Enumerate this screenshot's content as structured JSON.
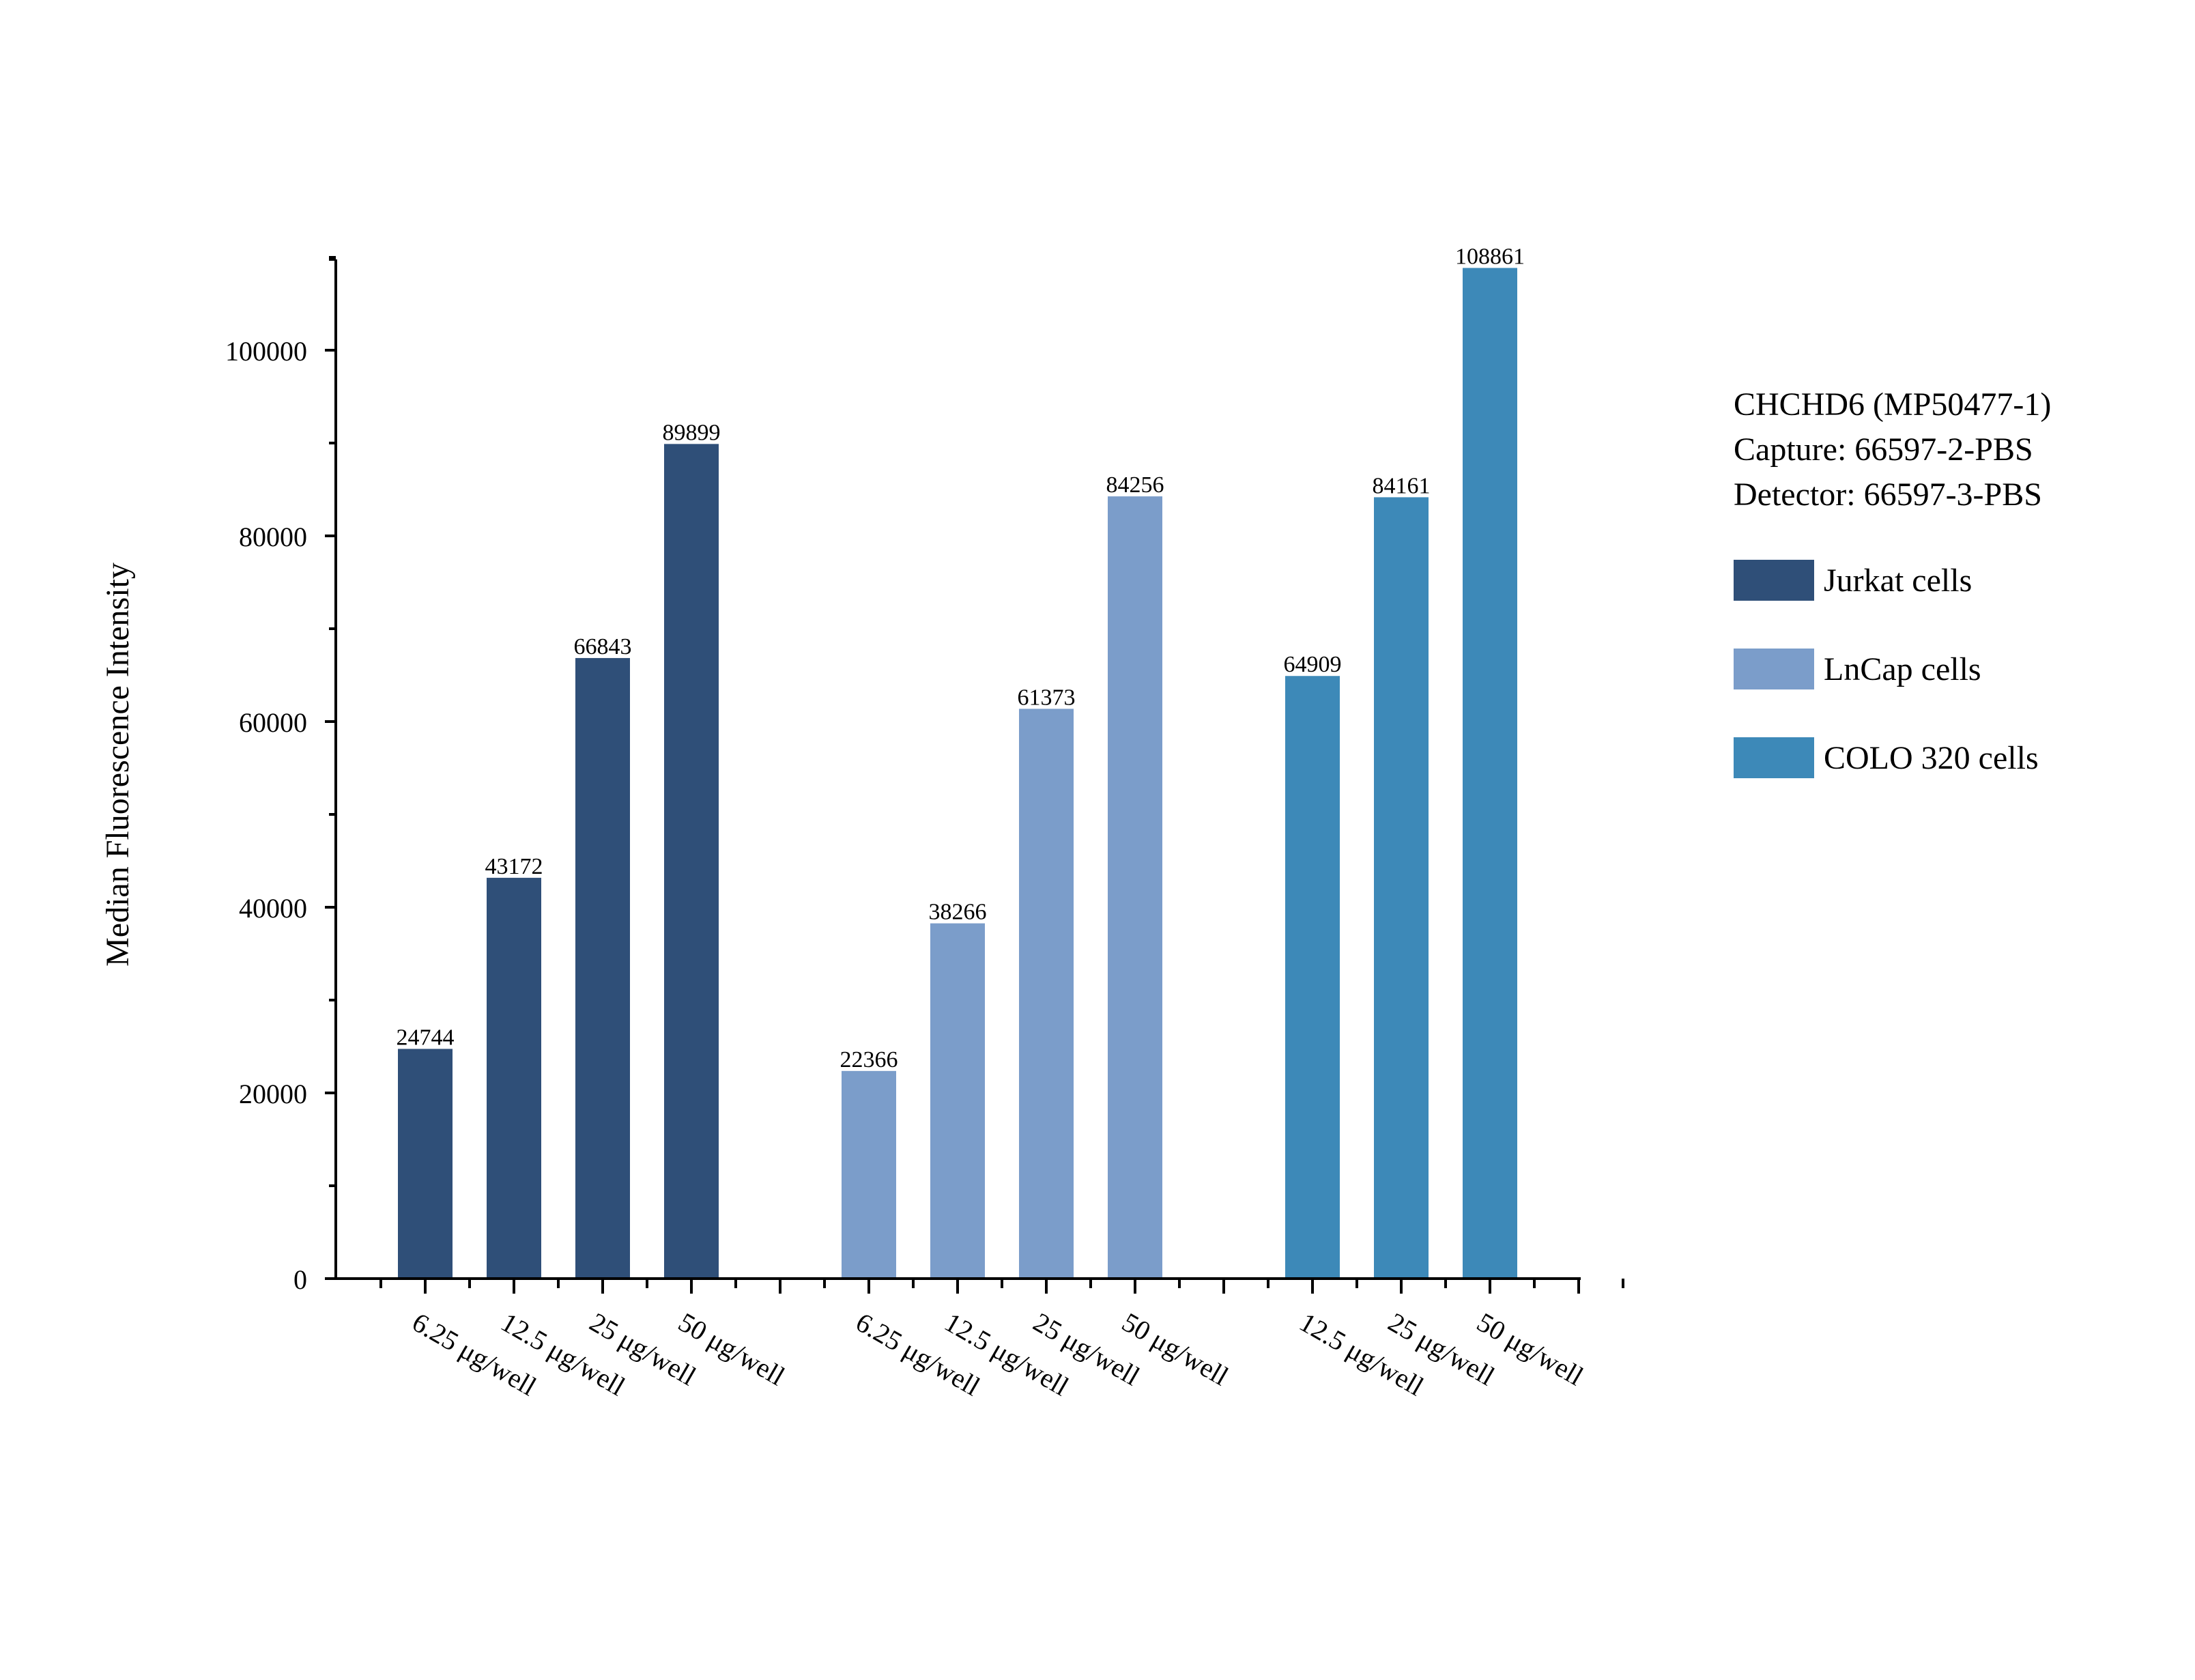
{
  "chart_data": {
    "type": "bar",
    "title": "CHCHD6 (MP50477-1)",
    "subtitle_lines": [
      "Capture: 66597-2-PBS",
      "Detector: 66597-3-PBS"
    ],
    "xlabel": "",
    "ylabel": "Median Fluorescence Intensity",
    "ylim": [
      0,
      110000
    ],
    "yticks": [
      0,
      20000,
      40000,
      60000,
      80000,
      100000
    ],
    "legend_position": "right",
    "series": [
      {
        "name": "Jurkat cells",
        "color": "#2f4f78",
        "categories": [
          "6.25 μg/well",
          "12.5 μg/well",
          "25 μg/well",
          "50 μg/well"
        ],
        "values": [
          24744,
          43172,
          66843,
          89899
        ]
      },
      {
        "name": "LnCap cells",
        "color": "#7b9dca",
        "categories": [
          "6.25 μg/well",
          "12.5 μg/well",
          "25 μg/well",
          "50 μg/well"
        ],
        "values": [
          22366,
          38266,
          61373,
          84256
        ]
      },
      {
        "name": "COLO 320 cells",
        "color": "#3d89b8",
        "categories": [
          "12.5 μg/well",
          "25 μg/well",
          "50 μg/well"
        ],
        "values": [
          64909,
          84161,
          108861
        ]
      }
    ]
  }
}
